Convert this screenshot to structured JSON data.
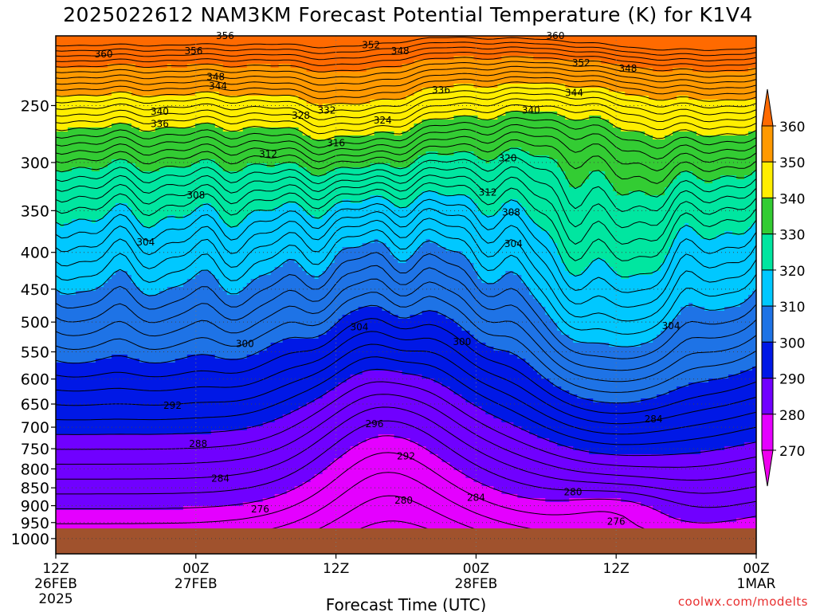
{
  "title": "2025022612 NAM3KM Forecast Potential Temperature (K) for K1V4",
  "credit": "coolwx.com/modelts",
  "chart_data": {
    "type": "contour",
    "title": "2025022612 NAM3KM Forecast Potential Temperature (K) for K1V4",
    "xlabel": "Forecast Time (UTC)",
    "ylabel": "",
    "x_ticks": [
      {
        "hour": 0,
        "labels": [
          "12Z",
          "26FEB",
          "2025"
        ]
      },
      {
        "hour": 12,
        "labels": [
          "00Z",
          "27FEB"
        ]
      },
      {
        "hour": 24,
        "labels": [
          "12Z"
        ]
      },
      {
        "hour": 36,
        "labels": [
          "00Z",
          "28FEB"
        ]
      },
      {
        "hour": 48,
        "labels": [
          "12Z"
        ]
      },
      {
        "hour": 60,
        "labels": [
          "00Z",
          "1MAR"
        ]
      }
    ],
    "y_ticks": [
      250,
      300,
      350,
      400,
      450,
      500,
      550,
      600,
      650,
      700,
      750,
      800,
      850,
      900,
      950,
      1000
    ],
    "ylim": [
      1050,
      200
    ],
    "colorbar": {
      "labels": [
        "360",
        "350",
        "340",
        "330",
        "320",
        "310",
        "300",
        "290",
        "280",
        "270"
      ],
      "bands": [
        {
          "min": 350,
          "max": 360,
          "color": "#ff9900"
        },
        {
          "min": 340,
          "max": 350,
          "color": "#ffee00"
        },
        {
          "min": 330,
          "max": 340,
          "color": "#33cc33"
        },
        {
          "min": 320,
          "max": 330,
          "color": "#00e6a0"
        },
        {
          "min": 310,
          "max": 320,
          "color": "#00c8ff"
        },
        {
          "min": 300,
          "max": 310,
          "color": "#1e73e6"
        },
        {
          "min": 290,
          "max": 300,
          "color": "#0018e6"
        },
        {
          "min": 280,
          "max": 290,
          "color": "#7000ff"
        },
        {
          "min": 270,
          "max": 280,
          "color": "#e400ff"
        }
      ],
      "over_color": "#ff6a00",
      "under_color": "#ee00ee"
    },
    "ground_color": "#a0522d",
    "ground_top_pressure": 968,
    "contour_labels": [
      {
        "v": "356",
        "t": 14.5,
        "p": 200
      },
      {
        "v": "360",
        "t": 42.8,
        "p": 200
      },
      {
        "v": "360",
        "t": 4.1,
        "p": 212
      },
      {
        "v": "356",
        "t": 11.8,
        "p": 210
      },
      {
        "v": "352",
        "t": 27.0,
        "p": 206
      },
      {
        "v": "348",
        "t": 29.5,
        "p": 210
      },
      {
        "v": "352",
        "t": 45.0,
        "p": 218
      },
      {
        "v": "348",
        "t": 49.0,
        "p": 222
      },
      {
        "v": "348",
        "t": 13.7,
        "p": 228
      },
      {
        "v": "344",
        "t": 13.9,
        "p": 235
      },
      {
        "v": "344",
        "t": 44.4,
        "p": 240
      },
      {
        "v": "340",
        "t": 8.9,
        "p": 255
      },
      {
        "v": "336",
        "t": 8.9,
        "p": 265
      },
      {
        "v": "336",
        "t": 33.0,
        "p": 238
      },
      {
        "v": "332",
        "t": 23.2,
        "p": 254
      },
      {
        "v": "328",
        "t": 21.0,
        "p": 258
      },
      {
        "v": "324",
        "t": 28.0,
        "p": 262
      },
      {
        "v": "340",
        "t": 40.7,
        "p": 254
      },
      {
        "v": "316",
        "t": 24.0,
        "p": 282
      },
      {
        "v": "312",
        "t": 18.2,
        "p": 292
      },
      {
        "v": "320",
        "t": 38.7,
        "p": 296
      },
      {
        "v": "308",
        "t": 12.0,
        "p": 333
      },
      {
        "v": "312",
        "t": 37.0,
        "p": 330
      },
      {
        "v": "308",
        "t": 39.0,
        "p": 352
      },
      {
        "v": "304",
        "t": 7.7,
        "p": 387
      },
      {
        "v": "304",
        "t": 39.2,
        "p": 389
      },
      {
        "v": "304",
        "t": 26.0,
        "p": 508
      },
      {
        "v": "304",
        "t": 52.7,
        "p": 506
      },
      {
        "v": "300",
        "t": 16.2,
        "p": 536
      },
      {
        "v": "300",
        "t": 34.8,
        "p": 533
      },
      {
        "v": "292",
        "t": 10.0,
        "p": 653
      },
      {
        "v": "284",
        "t": 51.2,
        "p": 682
      },
      {
        "v": "296",
        "t": 27.3,
        "p": 693
      },
      {
        "v": "288",
        "t": 12.2,
        "p": 738
      },
      {
        "v": "292",
        "t": 30.0,
        "p": 768
      },
      {
        "v": "284",
        "t": 14.1,
        "p": 825
      },
      {
        "v": "276",
        "t": 17.5,
        "p": 910
      },
      {
        "v": "280",
        "t": 29.8,
        "p": 885
      },
      {
        "v": "284",
        "t": 36.0,
        "p": 877
      },
      {
        "v": "280",
        "t": 44.3,
        "p": 862
      },
      {
        "v": "276",
        "t": 48.0,
        "p": 947
      }
    ]
  }
}
